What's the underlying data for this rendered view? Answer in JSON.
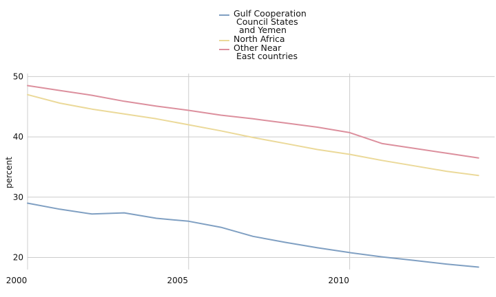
{
  "chart_data": {
    "type": "line",
    "title": "",
    "xlabel": "",
    "ylabel": "percent",
    "xlim": [
      2000,
      2014.5
    ],
    "ylim": [
      18,
      50.5
    ],
    "xticks": [
      2000,
      2005,
      2010
    ],
    "yticks": [
      20,
      30,
      40,
      50
    ],
    "grid": true,
    "legend_position": "top-center",
    "x": [
      2000,
      2001,
      2002,
      2003,
      2004,
      2005,
      2006,
      2007,
      2008,
      2009,
      2010,
      2011,
      2012,
      2013,
      2014
    ],
    "series": [
      {
        "name": "Gulf Cooperation\n Council States\n  and Yemen",
        "color": "#7f9fc2",
        "values": [
          29.0,
          28.0,
          27.2,
          27.4,
          26.5,
          26.0,
          25.0,
          23.5,
          22.5,
          21.6,
          20.8,
          20.1,
          19.5,
          18.9,
          18.4
        ]
      },
      {
        "name": "North Africa",
        "color": "#ebd999",
        "values": [
          47.0,
          45.6,
          44.6,
          43.8,
          43.0,
          42.0,
          41.0,
          39.9,
          38.9,
          37.9,
          37.1,
          36.1,
          35.2,
          34.3,
          33.6
        ]
      },
      {
        "name": "Other Near\n East countries",
        "color": "#dc8f9d",
        "values": [
          48.5,
          47.7,
          46.9,
          45.9,
          45.1,
          44.4,
          43.6,
          43.0,
          42.3,
          41.6,
          40.7,
          38.9,
          38.1,
          37.3,
          36.5
        ]
      }
    ]
  }
}
